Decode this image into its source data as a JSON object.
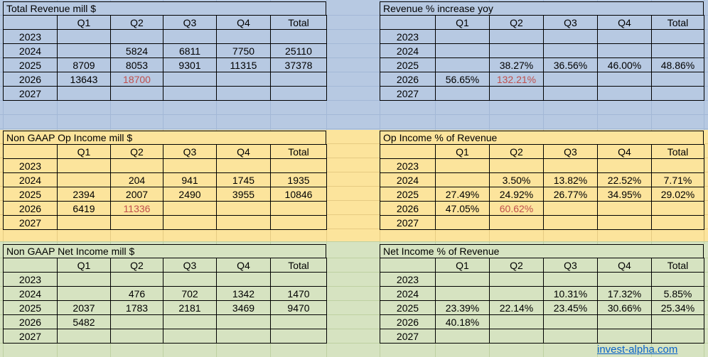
{
  "colors": {
    "band_blue": "#b7c9e2",
    "band_yellow": "#fce49c",
    "band_green": "#d6e3c1",
    "gridline_blue": "#a3b8d6",
    "gridline_yellow": "#e6cb82",
    "gridline_green": "#bed0a2",
    "table_border": "#000000",
    "flagged_value_red": "#c0504d",
    "link_blue": "#0a63c9"
  },
  "footer": {
    "link_label": "invest-alpha.com"
  },
  "tables": [
    {
      "id": "total-revenue",
      "title": "Total Revenue mill $",
      "band": "blue",
      "col_headers": [
        "",
        "Q1",
        "Q2",
        "Q3",
        "Q4",
        "Total"
      ],
      "rows": [
        {
          "year": "2023",
          "cells": [
            "",
            "",
            "",
            "",
            ""
          ],
          "red": []
        },
        {
          "year": "2024",
          "cells": [
            "",
            "5824",
            "6811",
            "7750",
            "25110"
          ],
          "red": []
        },
        {
          "year": "2025",
          "cells": [
            "8709",
            "8053",
            "9301",
            "11315",
            "37378"
          ],
          "red": []
        },
        {
          "year": "2026",
          "cells": [
            "13643",
            "18700",
            "",
            "",
            ""
          ],
          "red": [
            1
          ]
        },
        {
          "year": "2027",
          "cells": [
            "",
            "",
            "",
            "",
            ""
          ],
          "red": []
        }
      ]
    },
    {
      "id": "revenue-pct-increase-yoy",
      "title": "Revenue % increase yoy",
      "band": "blue",
      "col_headers": [
        "",
        "Q1",
        "Q2",
        "Q3",
        "Q4",
        "Total"
      ],
      "rows": [
        {
          "year": "2023",
          "cells": [
            "",
            "",
            "",
            "",
            ""
          ],
          "red": []
        },
        {
          "year": "2024",
          "cells": [
            "",
            "",
            "",
            "",
            ""
          ],
          "red": []
        },
        {
          "year": "2025",
          "cells": [
            "",
            "38.27%",
            "36.56%",
            "46.00%",
            "48.86%"
          ],
          "red": []
        },
        {
          "year": "2026",
          "cells": [
            "56.65%",
            "132.21%",
            "",
            "",
            ""
          ],
          "red": [
            1
          ]
        },
        {
          "year": "2027",
          "cells": [
            "",
            "",
            "",
            "",
            ""
          ],
          "red": []
        }
      ]
    },
    {
      "id": "non-gaap-op-income",
      "title": "Non GAAP Op Income mill $",
      "band": "yellow",
      "col_headers": [
        "",
        "Q1",
        "Q2",
        "Q3",
        "Q4",
        "Total"
      ],
      "rows": [
        {
          "year": "2023",
          "cells": [
            "",
            "",
            "",
            "",
            ""
          ],
          "red": []
        },
        {
          "year": "2024",
          "cells": [
            "",
            "204",
            "941",
            "1745",
            "1935"
          ],
          "red": []
        },
        {
          "year": "2025",
          "cells": [
            "2394",
            "2007",
            "2490",
            "3955",
            "10846"
          ],
          "red": []
        },
        {
          "year": "2026",
          "cells": [
            "6419",
            "11336",
            "",
            "",
            ""
          ],
          "red": [
            1
          ]
        },
        {
          "year": "2027",
          "cells": [
            "",
            "",
            "",
            "",
            ""
          ],
          "red": []
        }
      ]
    },
    {
      "id": "op-income-pct-of-revenue",
      "title": "Op Income % of Revenue",
      "band": "yellow",
      "col_headers": [
        "",
        "Q1",
        "Q2",
        "Q3",
        "Q4",
        "Total"
      ],
      "rows": [
        {
          "year": "2023",
          "cells": [
            "",
            "",
            "",
            "",
            ""
          ],
          "red": []
        },
        {
          "year": "2024",
          "cells": [
            "",
            "3.50%",
            "13.82%",
            "22.52%",
            "7.71%"
          ],
          "red": []
        },
        {
          "year": "2025",
          "cells": [
            "27.49%",
            "24.92%",
            "26.77%",
            "34.95%",
            "29.02%"
          ],
          "red": []
        },
        {
          "year": "2026",
          "cells": [
            "47.05%",
            "60.62%",
            "",
            "",
            ""
          ],
          "red": [
            1
          ]
        },
        {
          "year": "2027",
          "cells": [
            "",
            "",
            "",
            "",
            ""
          ],
          "red": []
        }
      ]
    },
    {
      "id": "non-gaap-net-income",
      "title": "Non GAAP Net Income mill $",
      "band": "green",
      "col_headers": [
        "",
        "Q1",
        "Q2",
        "Q3",
        "Q4",
        "Total"
      ],
      "rows": [
        {
          "year": "2023",
          "cells": [
            "",
            "",
            "",
            "",
            ""
          ],
          "red": []
        },
        {
          "year": "2024",
          "cells": [
            "",
            "476",
            "702",
            "1342",
            "1470"
          ],
          "red": []
        },
        {
          "year": "2025",
          "cells": [
            "2037",
            "1783",
            "2181",
            "3469",
            "9470"
          ],
          "red": []
        },
        {
          "year": "2026",
          "cells": [
            "5482",
            "",
            "",
            "",
            ""
          ],
          "red": []
        },
        {
          "year": "2027",
          "cells": [
            "",
            "",
            "",
            "",
            ""
          ],
          "red": []
        }
      ]
    },
    {
      "id": "net-income-pct-of-revenue",
      "title": "Net Income % of Revenue",
      "band": "green",
      "col_headers": [
        "",
        "Q1",
        "Q2",
        "Q3",
        "Q4",
        "Total"
      ],
      "rows": [
        {
          "year": "2023",
          "cells": [
            "",
            "",
            "",
            "",
            ""
          ],
          "red": []
        },
        {
          "year": "2024",
          "cells": [
            "",
            "",
            "10.31%",
            "17.32%",
            "5.85%"
          ],
          "red": []
        },
        {
          "year": "2025",
          "cells": [
            "23.39%",
            "22.14%",
            "23.45%",
            "30.66%",
            "25.34%"
          ],
          "red": []
        },
        {
          "year": "2026",
          "cells": [
            "40.18%",
            "",
            "",
            "",
            ""
          ],
          "red": []
        },
        {
          "year": "2027",
          "cells": [
            "",
            "",
            "",
            "",
            ""
          ],
          "red": []
        }
      ]
    }
  ]
}
